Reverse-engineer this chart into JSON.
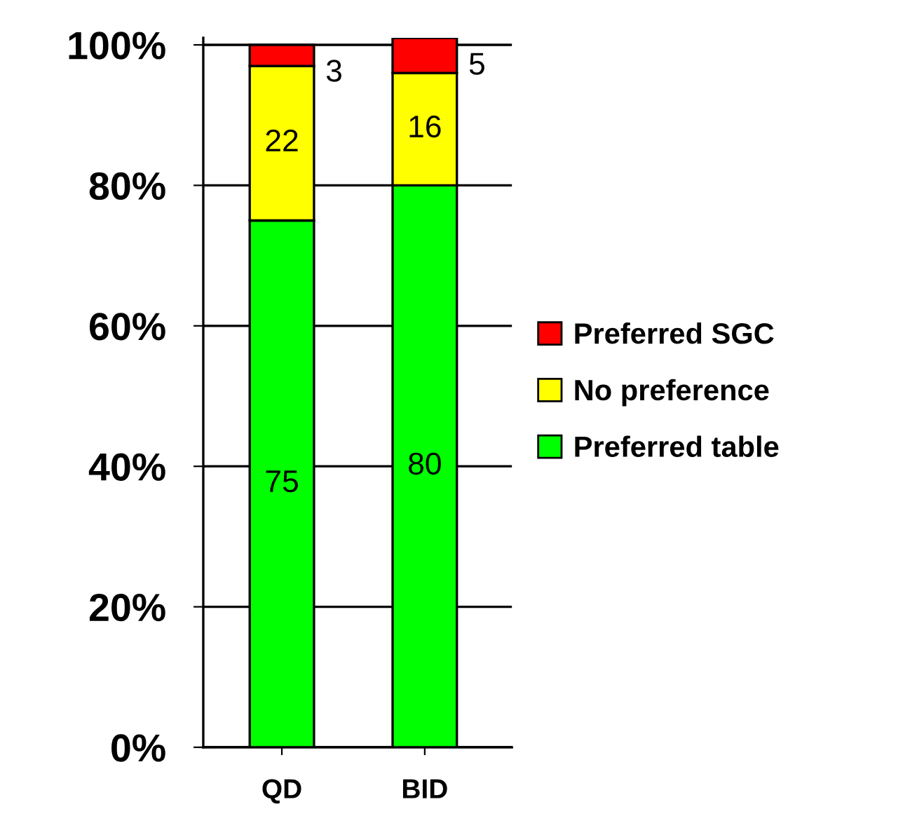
{
  "chart_data": {
    "type": "bar",
    "stacked": true,
    "categories": [
      "QD",
      "BID"
    ],
    "series": [
      {
        "name": "Preferred table",
        "color": "#00ff00",
        "values": [
          75,
          80
        ]
      },
      {
        "name": "No preference",
        "color": "#ffff00",
        "values": [
          22,
          16
        ]
      },
      {
        "name": "Preferred SGC",
        "color": "#ff0000",
        "values": [
          3,
          5
        ]
      }
    ],
    "ylim": [
      0,
      101
    ],
    "yticks": [
      {
        "value": 0,
        "label": "0%"
      },
      {
        "value": 20,
        "label": "20%"
      },
      {
        "value": 40,
        "label": "40%"
      },
      {
        "value": 60,
        "label": "60%"
      },
      {
        "value": 80,
        "label": "80%"
      },
      {
        "value": 100,
        "label": "100%"
      }
    ],
    "grid": "y",
    "legend": "right",
    "data_labels": true
  }
}
